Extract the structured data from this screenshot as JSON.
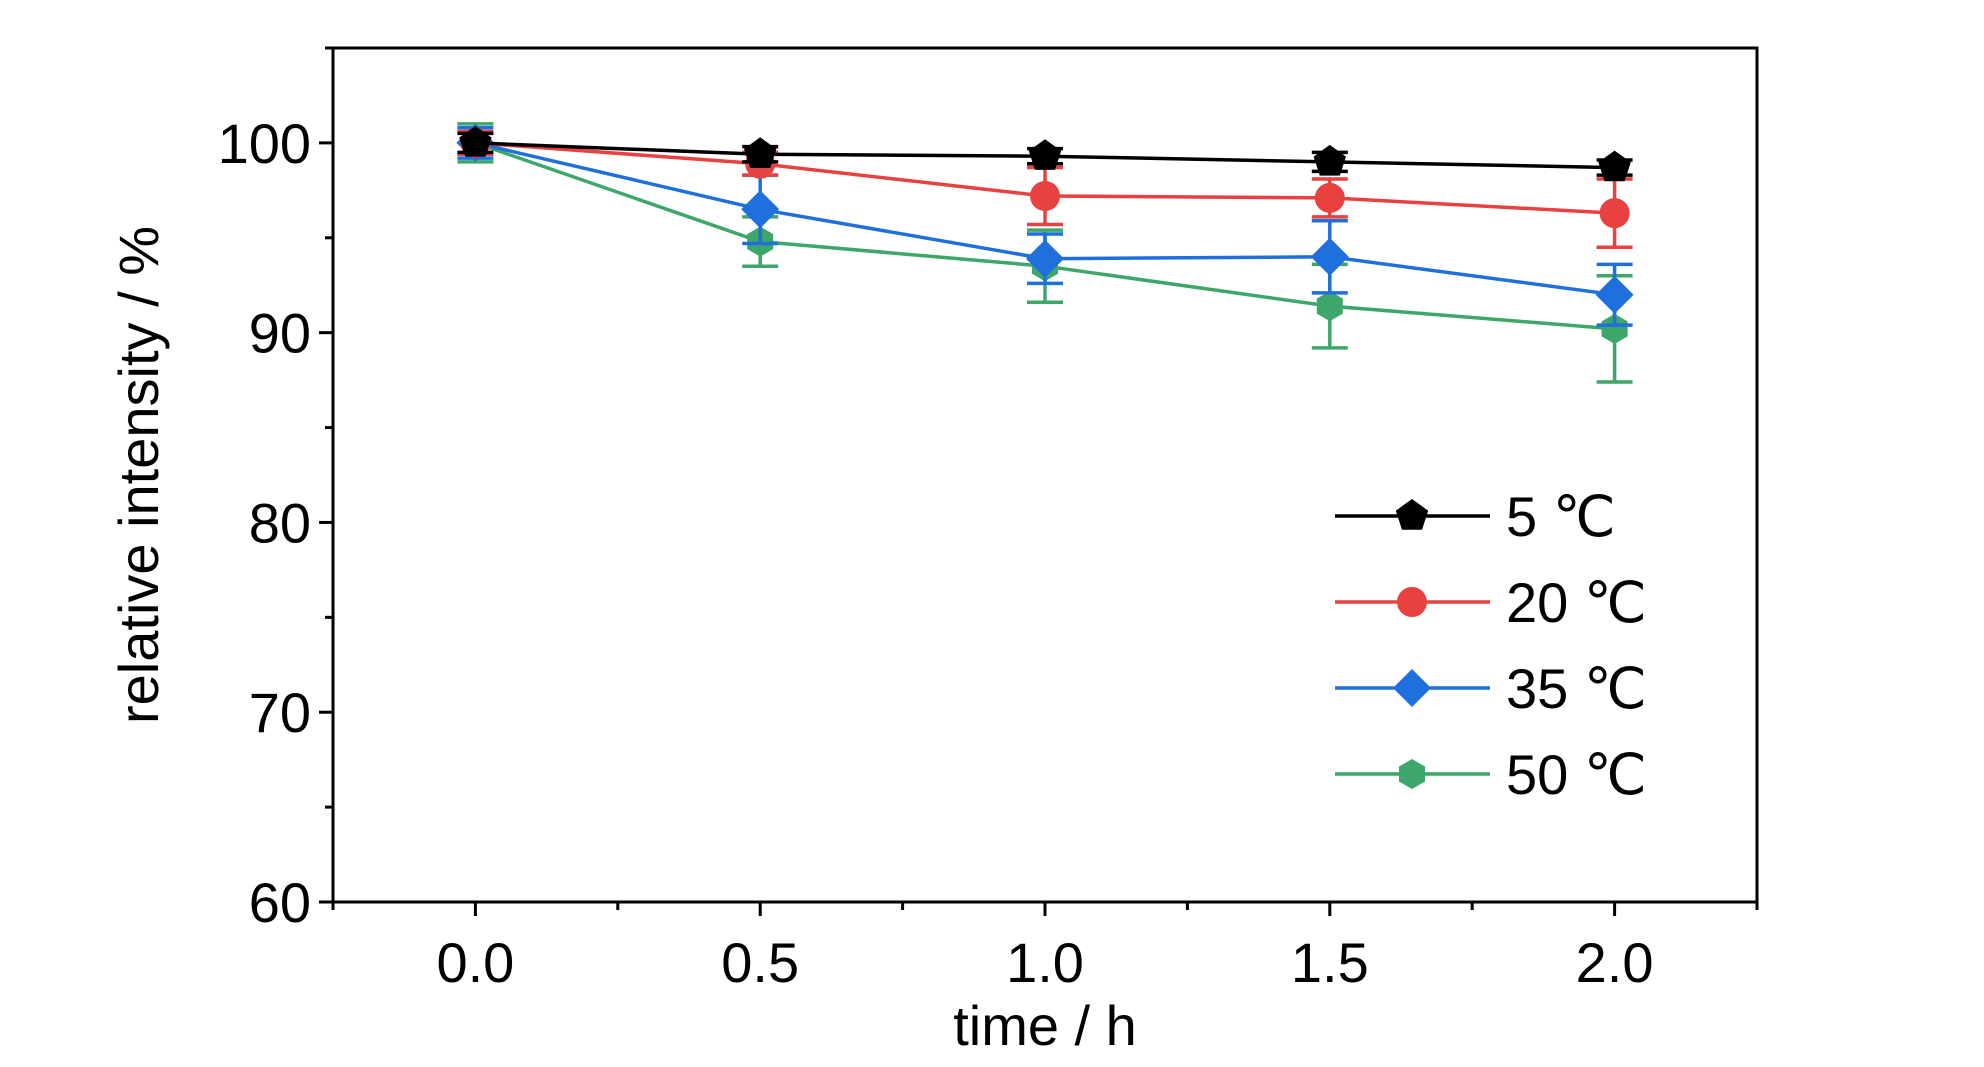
{
  "chart_data": {
    "type": "line",
    "title": "",
    "xlabel": "time / h",
    "ylabel": "relative intensity / %",
    "xlim": [
      -0.25,
      2.25
    ],
    "ylim": [
      60,
      105
    ],
    "x_ticks": [
      "0.0",
      "0.5",
      "1.0",
      "1.5",
      "2.0"
    ],
    "y_ticks": [
      "60",
      "70",
      "80",
      "90",
      "100"
    ],
    "grid": false,
    "legend_position": "bottom-right",
    "x": [
      0.0,
      0.5,
      1.0,
      1.5,
      2.0
    ],
    "series": [
      {
        "name": "5 ℃",
        "color": "#000000",
        "marker": "pentagon",
        "values": [
          100.0,
          99.4,
          99.3,
          99.0,
          98.7
        ],
        "errors": [
          0.5,
          0.4,
          0.4,
          0.5,
          0.4
        ]
      },
      {
        "name": "20 ℃",
        "color": "#e8413f",
        "marker": "circle",
        "values": [
          100.0,
          98.9,
          97.2,
          97.1,
          96.3
        ],
        "errors": [
          0.6,
          0.6,
          1.5,
          1.0,
          1.8
        ]
      },
      {
        "name": "35 ℃",
        "color": "#1f6fdc",
        "marker": "diamond",
        "values": [
          100.0,
          96.5,
          93.9,
          94.0,
          92.0
        ],
        "errors": [
          0.8,
          1.8,
          1.3,
          1.9,
          1.6
        ]
      },
      {
        "name": "50 ℃",
        "color": "#3da66a",
        "marker": "hexagon",
        "values": [
          100.0,
          94.8,
          93.5,
          91.4,
          90.2
        ],
        "errors": [
          1.0,
          1.3,
          1.9,
          2.2,
          2.8
        ]
      }
    ]
  }
}
